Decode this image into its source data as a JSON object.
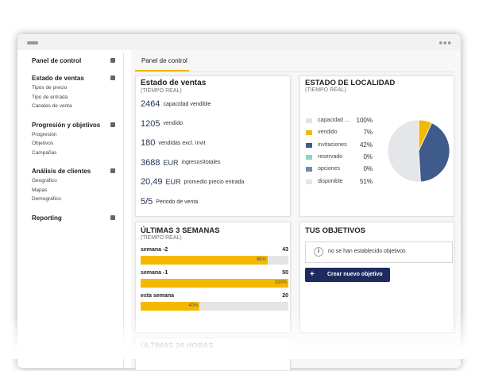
{
  "sidebar": {
    "sections": [
      {
        "title": "Panel de control",
        "items": []
      },
      {
        "title": "Estado de ventas",
        "items": [
          "Tipos de precio",
          "Tipo de entrada",
          "Canales de venta"
        ]
      },
      {
        "title": "Progresión y objetivos",
        "items": [
          "Progresión",
          "Objetivos",
          "Campañas"
        ]
      },
      {
        "title": "Análisis de clientes",
        "items": [
          "Geográfico",
          "Mapas",
          "Demográfico"
        ]
      },
      {
        "title": "Reporting",
        "items": []
      }
    ]
  },
  "tab": "Panel de control",
  "sales": {
    "title": "Estado de ventas",
    "subtitle": "(TIEMPO REAL)",
    "rows": [
      {
        "value": "2464",
        "label": "capacidad vendible"
      },
      {
        "value": "1205",
        "label": "vendido"
      },
      {
        "value": "180",
        "label": "vendidas excl. Invit"
      },
      {
        "value": "3688",
        "unit": "EUR",
        "label": "ingresos\\totales"
      },
      {
        "value": "20,49",
        "unit": "EUR",
        "label": "promedio precio entrada"
      },
      {
        "value": "5/5",
        "label": "Periodo de venta"
      }
    ]
  },
  "locality": {
    "title": "ESTADO DE LOCALIDAD",
    "subtitle": "(TIEMPO REAL)",
    "total": {
      "name": "capacidad ...",
      "value": 100,
      "label": "100%",
      "color": "#dfe3e8"
    },
    "items": [
      {
        "name": "vendido",
        "value": 7,
        "label": "7%",
        "color": "#f5b800"
      },
      {
        "name": "invitaciones",
        "value": 42,
        "label": "42%",
        "color": "#3e5b8b"
      },
      {
        "name": "reservado",
        "value": 0,
        "label": "0%",
        "color": "#86d8c7"
      },
      {
        "name": "opciones",
        "value": 0,
        "label": "0%",
        "color": "#7088ad"
      },
      {
        "name": "disponible",
        "value": 51,
        "label": "51%",
        "color": "#e4e6e9"
      }
    ]
  },
  "weeks": {
    "title": "ÚLTIMAS 3 SEMANAS",
    "subtitle": "(TIEMPO REAL)",
    "xlim": [
      0,
      100
    ],
    "color": "#f5b800",
    "rows": [
      {
        "name": "semana -2",
        "count": 43,
        "percent": 86,
        "percent_label": "86%"
      },
      {
        "name": "semana -1",
        "count": 50,
        "percent": 100,
        "percent_label": "100%"
      },
      {
        "name": "esta semana",
        "count": 20,
        "percent": 40,
        "percent_label": "40%"
      }
    ]
  },
  "objectives": {
    "title": "TUS OBJETIVOS",
    "message": "no se han establecido objetivos",
    "button": "Crear nuevo objetivo"
  },
  "last24": {
    "title": "ÚLTIMAS 24 HORAS"
  }
}
